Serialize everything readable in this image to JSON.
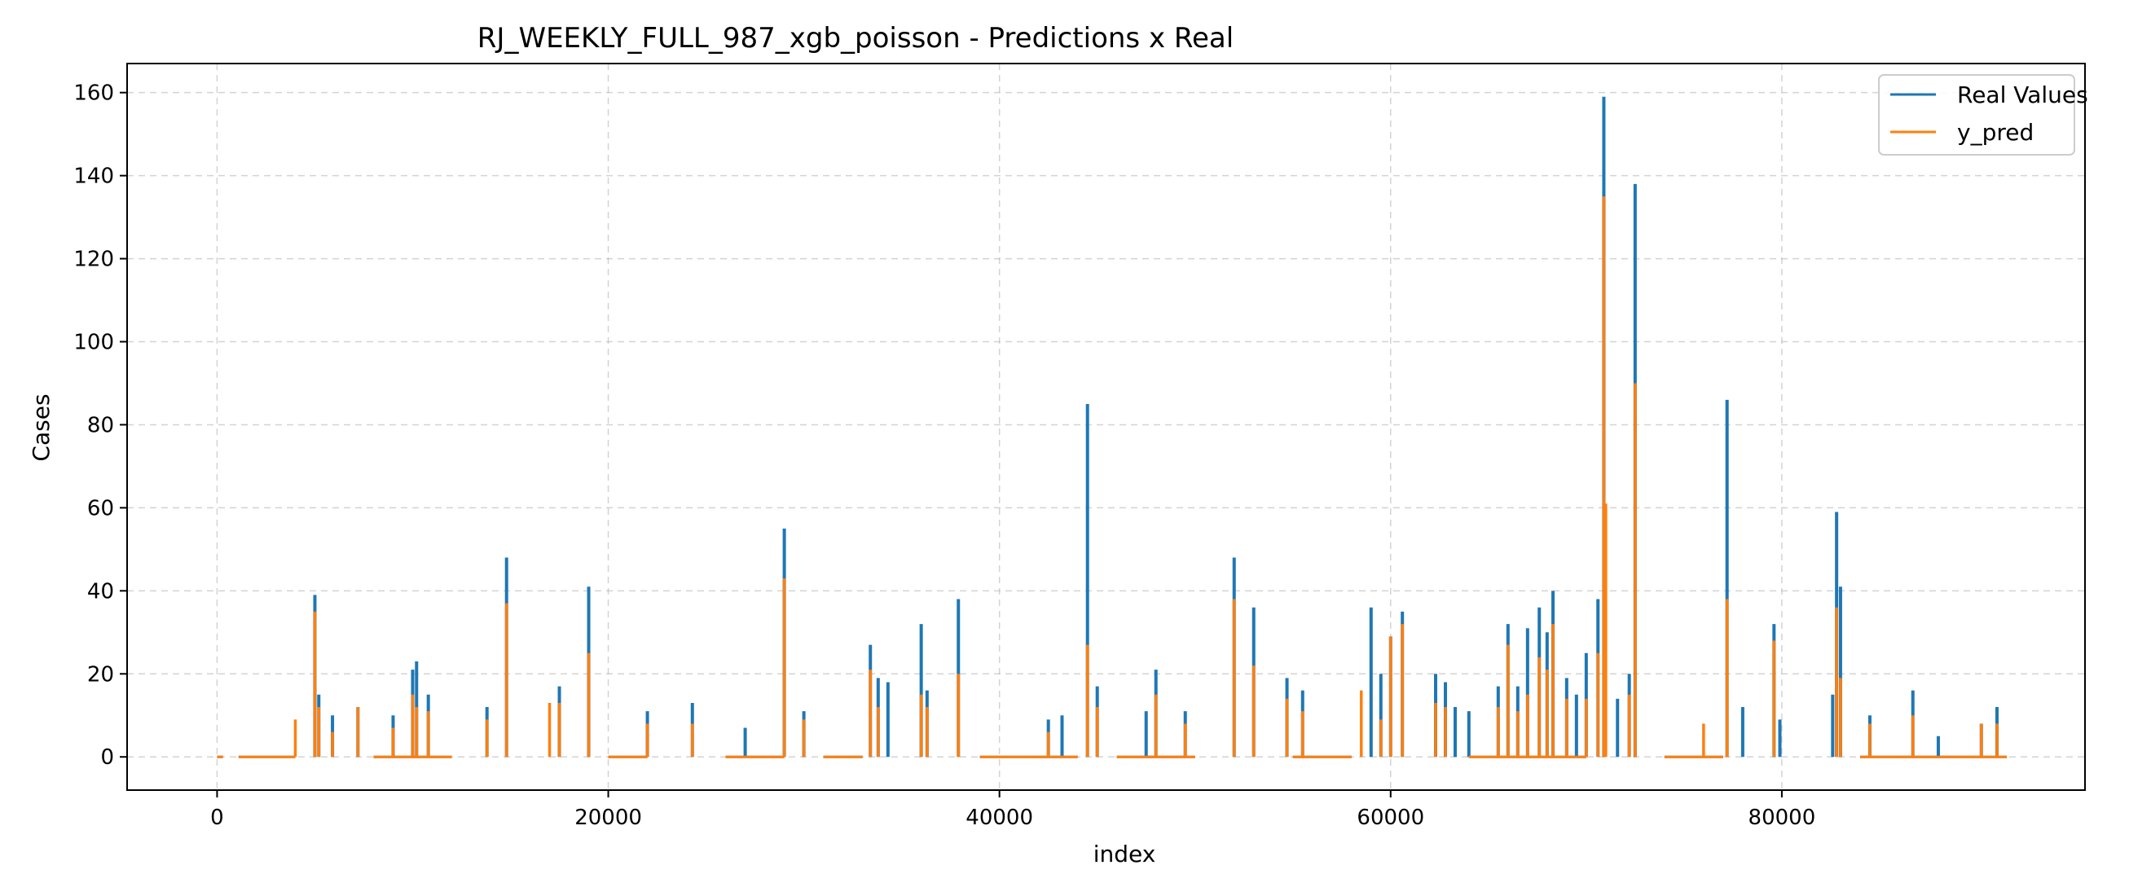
{
  "chart_data": {
    "type": "line",
    "title": "RJ_WEEKLY_FULL_987_xgb_poisson - Predictions x Real",
    "xlabel": "index",
    "ylabel": "Cases",
    "xlim": [
      -4600,
      95500
    ],
    "ylim": [
      -8,
      167
    ],
    "xticks": [
      0,
      20000,
      40000,
      60000,
      80000
    ],
    "yticks": [
      0,
      20,
      40,
      60,
      80,
      100,
      120,
      140,
      160
    ],
    "grid": true,
    "legend_position": "top-right",
    "baseline_segments": [
      [
        0,
        300
      ],
      [
        1100,
        4000
      ],
      [
        8000,
        12000
      ],
      [
        20000,
        22000
      ],
      [
        26000,
        29000
      ],
      [
        31000,
        33000
      ],
      [
        39000,
        44000
      ],
      [
        46000,
        50000
      ],
      [
        55000,
        58000
      ],
      [
        64000,
        70000
      ],
      [
        74000,
        77000
      ],
      [
        84000,
        91500
      ]
    ],
    "series": [
      {
        "name": "Real Values",
        "color": "#1f77b4",
        "spikes": [
          [
            5000,
            39
          ],
          [
            5200,
            15
          ],
          [
            5900,
            10
          ],
          [
            7200,
            12
          ],
          [
            9000,
            10
          ],
          [
            10000,
            21
          ],
          [
            10200,
            23
          ],
          [
            10800,
            15
          ],
          [
            13800,
            12
          ],
          [
            14800,
            48
          ],
          [
            17500,
            17
          ],
          [
            19000,
            41
          ],
          [
            22000,
            11
          ],
          [
            24300,
            13
          ],
          [
            27000,
            7
          ],
          [
            29000,
            55
          ],
          [
            30000,
            11
          ],
          [
            33400,
            27
          ],
          [
            33800,
            19
          ],
          [
            34300,
            18
          ],
          [
            36000,
            32
          ],
          [
            36300,
            16
          ],
          [
            37900,
            38
          ],
          [
            42500,
            9
          ],
          [
            43200,
            10
          ],
          [
            44500,
            85
          ],
          [
            45000,
            17
          ],
          [
            47500,
            11
          ],
          [
            48000,
            21
          ],
          [
            49500,
            11
          ],
          [
            52000,
            48
          ],
          [
            53000,
            36
          ],
          [
            54700,
            19
          ],
          [
            55500,
            16
          ],
          [
            59000,
            36
          ],
          [
            59500,
            20
          ],
          [
            60000,
            29
          ],
          [
            60600,
            35
          ],
          [
            62300,
            20
          ],
          [
            62800,
            18
          ],
          [
            63300,
            12
          ],
          [
            64000,
            11
          ],
          [
            65500,
            17
          ],
          [
            66000,
            32
          ],
          [
            66500,
            17
          ],
          [
            67000,
            31
          ],
          [
            67600,
            36
          ],
          [
            68000,
            30
          ],
          [
            68300,
            40
          ],
          [
            69000,
            19
          ],
          [
            69500,
            15
          ],
          [
            70000,
            25
          ],
          [
            70600,
            38
          ],
          [
            70900,
            159
          ],
          [
            71600,
            14
          ],
          [
            72200,
            20
          ],
          [
            72500,
            138
          ],
          [
            77200,
            86
          ],
          [
            78000,
            12
          ],
          [
            79600,
            32
          ],
          [
            79900,
            9
          ],
          [
            82600,
            15
          ],
          [
            82800,
            59
          ],
          [
            83000,
            41
          ],
          [
            84500,
            10
          ],
          [
            86700,
            16
          ],
          [
            88000,
            5
          ],
          [
            90200,
            8
          ],
          [
            91000,
            12
          ]
        ]
      },
      {
        "name": "y_pred",
        "color": "#ff7f0e",
        "spikes": [
          [
            4000,
            9
          ],
          [
            5000,
            35
          ],
          [
            5200,
            12
          ],
          [
            5900,
            6
          ],
          [
            7200,
            12
          ],
          [
            9000,
            7
          ],
          [
            10000,
            15
          ],
          [
            10200,
            12
          ],
          [
            10800,
            11
          ],
          [
            13800,
            9
          ],
          [
            14800,
            37
          ],
          [
            17000,
            13
          ],
          [
            17500,
            13
          ],
          [
            19000,
            25
          ],
          [
            22000,
            8
          ],
          [
            24300,
            8
          ],
          [
            29000,
            43
          ],
          [
            30000,
            9
          ],
          [
            33400,
            21
          ],
          [
            33800,
            12
          ],
          [
            36000,
            15
          ],
          [
            36300,
            12
          ],
          [
            37900,
            20
          ],
          [
            42500,
            6
          ],
          [
            44500,
            27
          ],
          [
            45000,
            12
          ],
          [
            48000,
            15
          ],
          [
            49500,
            8
          ],
          [
            52000,
            38
          ],
          [
            53000,
            22
          ],
          [
            54700,
            14
          ],
          [
            55500,
            11
          ],
          [
            58500,
            16
          ],
          [
            59500,
            9
          ],
          [
            60000,
            29
          ],
          [
            60600,
            32
          ],
          [
            62300,
            13
          ],
          [
            62800,
            12
          ],
          [
            65500,
            12
          ],
          [
            66000,
            27
          ],
          [
            66500,
            11
          ],
          [
            67000,
            15
          ],
          [
            67600,
            24
          ],
          [
            68000,
            21
          ],
          [
            68300,
            32
          ],
          [
            69000,
            14
          ],
          [
            70000,
            14
          ],
          [
            70600,
            25
          ],
          [
            70900,
            135
          ],
          [
            71000,
            61
          ],
          [
            72200,
            15
          ],
          [
            72500,
            90
          ],
          [
            76000,
            8
          ],
          [
            77200,
            38
          ],
          [
            79600,
            28
          ],
          [
            82800,
            36
          ],
          [
            83000,
            19
          ],
          [
            84500,
            8
          ],
          [
            86700,
            10
          ],
          [
            90200,
            8
          ],
          [
            91000,
            8
          ]
        ]
      }
    ]
  }
}
